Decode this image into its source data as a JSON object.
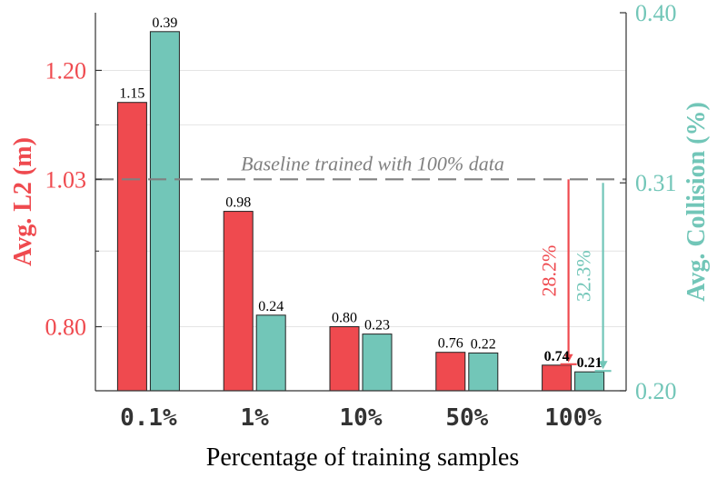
{
  "chart_data": {
    "type": "bar",
    "categories": [
      "0.1%",
      "1%",
      "10%",
      "50%",
      "100%"
    ],
    "xlabel": "Percentage of training samples",
    "series": [
      {
        "name": "Avg. L2 (m)",
        "axis": "left",
        "color": "#ef4a4f",
        "values": [
          1.15,
          0.98,
          0.8,
          0.76,
          0.74
        ],
        "labels": [
          "1.15",
          "0.98",
          "0.80",
          "0.76",
          "0.74"
        ]
      },
      {
        "name": "Avg. Collision (%)",
        "axis": "right",
        "color": "#72c6b8",
        "values": [
          0.39,
          0.24,
          0.23,
          0.22,
          0.21
        ],
        "labels": [
          "0.39",
          "0.24",
          "0.23",
          "0.22",
          "0.21"
        ]
      }
    ],
    "left_axis": {
      "label": "Avg. L2 (m)",
      "ylim": [
        0.7,
        1.29
      ],
      "ticks": [
        0.8,
        1.03,
        1.2
      ],
      "tick_labels": [
        "0.80",
        "1.03",
        "1.20"
      ],
      "minor_ticks": [
        0.918,
        1.115
      ]
    },
    "right_axis": {
      "label": "Avg. Collision (%)",
      "ylim": [
        0.2,
        0.4
      ],
      "ticks": [
        0.2,
        0.31,
        0.4
      ],
      "tick_labels": [
        "0.20",
        "0.31",
        "0.40"
      ]
    },
    "baseline": {
      "label": "Baseline trained with 100% data",
      "left_value": 1.03,
      "right_value": 0.31
    },
    "annotations": [
      {
        "text": "28.2%",
        "series": "Avg. L2 (m)",
        "from": 1.03,
        "to": 0.74
      },
      {
        "text": "32.3%",
        "series": "Avg. Collision (%)",
        "from": 0.31,
        "to": 0.21
      }
    ],
    "colors": {
      "left": "#ef4a4f",
      "right": "#72c6b8",
      "baseline": "#808080",
      "grid": "#e4e4e4",
      "axis": "#333333"
    }
  }
}
